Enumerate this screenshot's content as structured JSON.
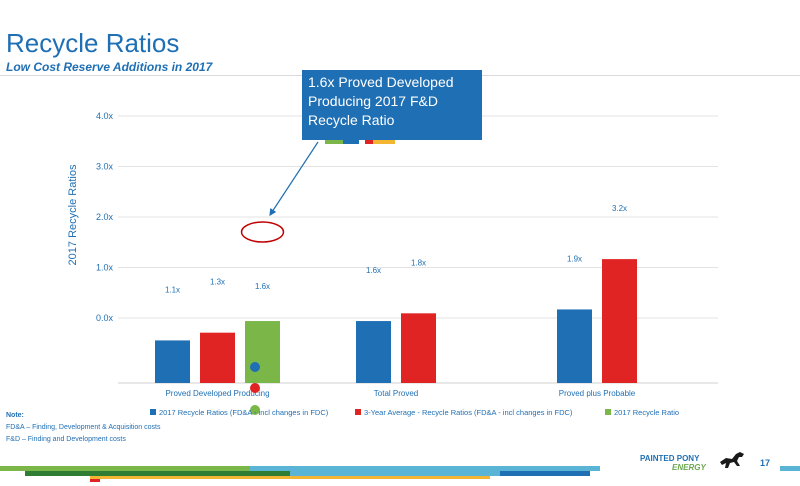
{
  "header": {
    "title": "Recycle Ratios",
    "subtitle": "Low Cost Reserve Additions in 2017"
  },
  "callout": {
    "lines": [
      "1.6x Proved Developed",
      "Producing 2017 F&D",
      "Recycle Ratio"
    ]
  },
  "notes": {
    "heading": "Note:",
    "line1": "FD&A – Finding, Development & Acquisition costs",
    "line2": "F&D – Finding and Development costs"
  },
  "footer": {
    "logo_line1": "PAINTED PONY",
    "logo_line2": "ENERGY",
    "page_number": "17"
  },
  "colors": {
    "blue": "#1f6fb4",
    "red": "#e02424",
    "green": "#7ab648",
    "circle": "#c00000"
  },
  "chart_data": {
    "type": "bar",
    "ylabel": "2017 Recycle Ratios",
    "yticks": [
      "0.0x",
      "1.0x",
      "2.0x",
      "3.0x",
      "4.0x"
    ],
    "ylim": [
      0,
      4
    ],
    "grid": true,
    "legend_position": "bottom",
    "categories": [
      "Proved Developed Producing",
      "Total Proved",
      "Proved plus Probable"
    ],
    "series": [
      {
        "name": "2017 Recycle Ratios (FD&A - incl changes in FDC)",
        "color": "#1f6fb4",
        "values": [
          1.1,
          1.6,
          1.9
        ],
        "labels": [
          "1.1x",
          "1.6x",
          "1.9x"
        ]
      },
      {
        "name": "3-Year Average - Recycle Ratios (FD&A - incl changes in FDC)",
        "color": "#e02424",
        "values": [
          1.3,
          1.8,
          3.2
        ],
        "labels": [
          "1.3x",
          "1.8x",
          "3.2x"
        ]
      },
      {
        "name": "2017 Recycle Ratio",
        "color": "#7ab648",
        "values": [
          1.6,
          null,
          null
        ],
        "labels": [
          "1.6x",
          "",
          ""
        ]
      }
    ],
    "highlighted_label": "1.6x"
  }
}
